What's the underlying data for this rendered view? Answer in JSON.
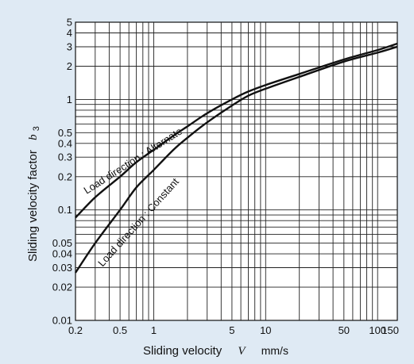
{
  "chart_data": {
    "type": "line",
    "xlabel": "Sliding velocity",
    "xlabel_symbol": "V",
    "xlabel_unit": "mm/s",
    "ylabel": "Sliding velocity factor",
    "ylabel_symbol": "b",
    "ylabel_symbol_sub": "3",
    "x_scale": "log",
    "y_scale": "log",
    "xlim": [
      0.2,
      150
    ],
    "ylim": [
      0.01,
      5
    ],
    "grid": true,
    "x_ticks": [
      0.2,
      0.5,
      1,
      5,
      10,
      50,
      100,
      150
    ],
    "x_tick_labels": [
      "0.2",
      "0.5",
      "1",
      "5",
      "10",
      "50",
      "100",
      "150"
    ],
    "y_ticks": [
      0.01,
      0.02,
      0.03,
      0.04,
      0.05,
      0.1,
      0.2,
      0.3,
      0.4,
      0.5,
      1,
      2,
      3,
      4,
      5
    ],
    "y_tick_labels": [
      "0.01",
      "0.02",
      "0.03",
      "0.04",
      "0.05",
      "0.1",
      "0.2",
      "0.3",
      "0.4",
      "0.5",
      "1",
      "2",
      "3",
      "4",
      "5"
    ],
    "series": [
      {
        "name": "Load direction : Alternate",
        "x": [
          0.2,
          0.3,
          0.5,
          0.7,
          1,
          1.5,
          2,
          3,
          5,
          7,
          10,
          20,
          50,
          100,
          150
        ],
        "y": [
          0.085,
          0.13,
          0.2,
          0.27,
          0.35,
          0.47,
          0.57,
          0.75,
          1.0,
          1.18,
          1.35,
          1.7,
          2.3,
          2.8,
          3.2
        ]
      },
      {
        "name": "Load direction : Constant",
        "x": [
          0.2,
          0.3,
          0.5,
          0.7,
          1,
          1.5,
          2,
          3,
          5,
          7,
          10,
          20,
          50,
          100,
          150
        ],
        "y": [
          0.027,
          0.05,
          0.1,
          0.16,
          0.23,
          0.35,
          0.45,
          0.62,
          0.88,
          1.08,
          1.25,
          1.6,
          2.2,
          2.65,
          3.0
        ]
      }
    ]
  }
}
